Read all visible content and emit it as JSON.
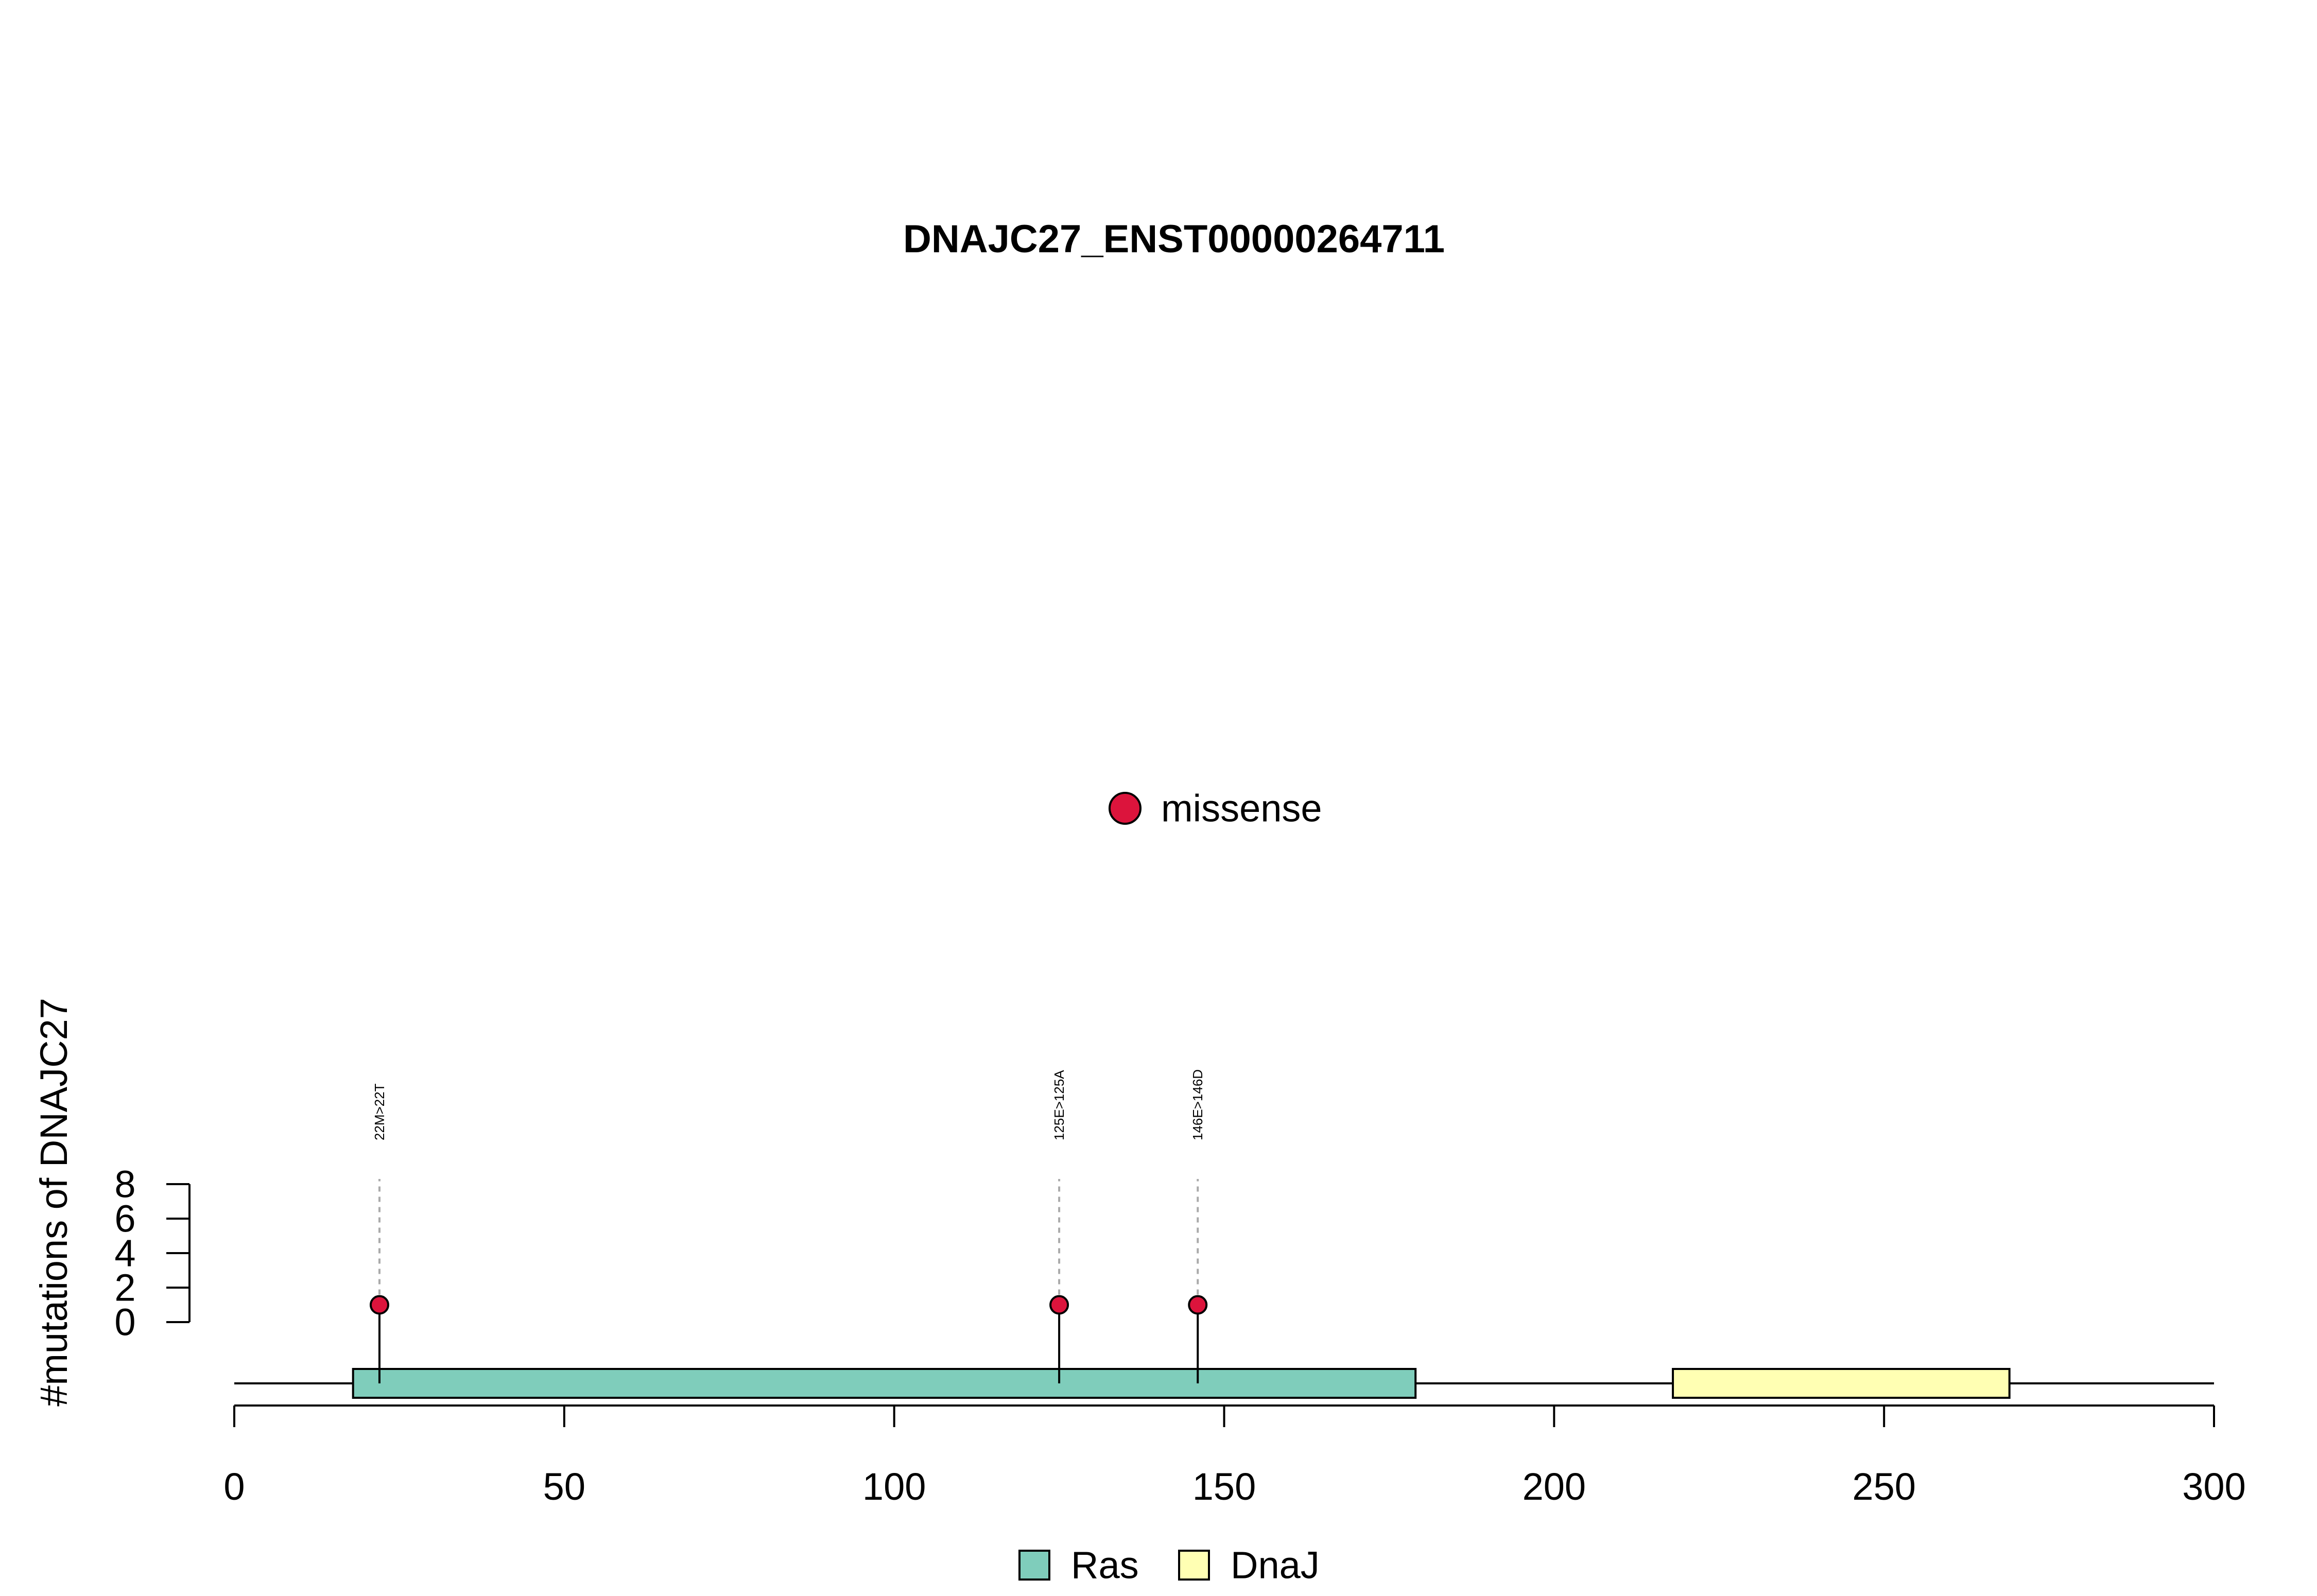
{
  "chart_data": {
    "type": "lollipop",
    "title": "DNAJC27_ENST00000264711",
    "ylabel": "#mutations of DNAJC27",
    "xlabel": "",
    "xlim": [
      0,
      300
    ],
    "x_ticks": [
      0,
      50,
      100,
      150,
      200,
      250,
      300
    ],
    "ylim": [
      0,
      8
    ],
    "y_ticks": [
      0,
      2,
      4,
      6,
      8
    ],
    "mutation_legend": [
      {
        "label": "missense",
        "color": "#DC143C"
      }
    ],
    "mutations": [
      {
        "position": 22,
        "count": 1,
        "label": "22M>22T",
        "type": "missense"
      },
      {
        "position": 125,
        "count": 1,
        "label": "125E>125A",
        "type": "missense"
      },
      {
        "position": 146,
        "count": 1,
        "label": "146E>146D",
        "type": "missense"
      }
    ],
    "domains": [
      {
        "name": "Ras",
        "start": 18,
        "end": 179,
        "color": "#7FCDBB"
      },
      {
        "name": "DnaJ",
        "start": 218,
        "end": 269,
        "color": "#FFFFB3"
      }
    ],
    "protein_length": 300
  }
}
